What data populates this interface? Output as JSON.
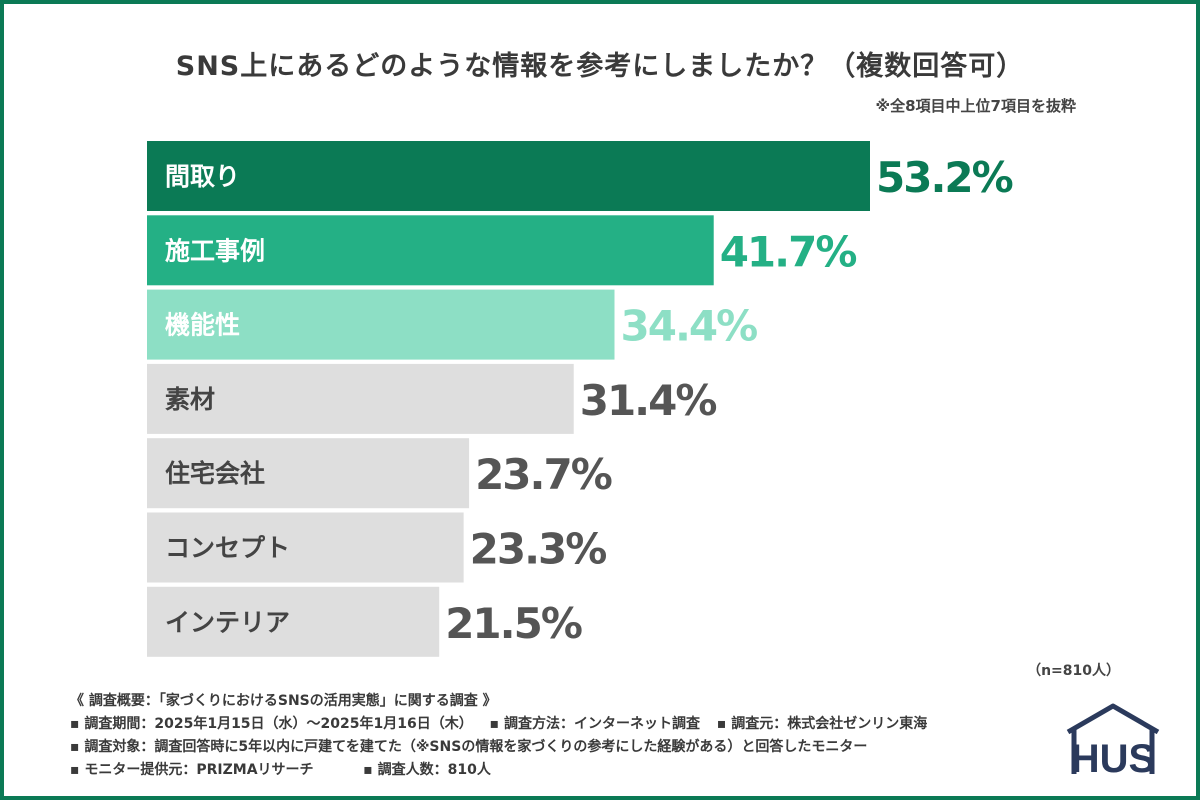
{
  "title": "SNS上にあるどのような情報を参考にしましたか？（複数回答可）",
  "subnote": "※全8項目中上位7項目を抜粋",
  "sample": "（n=810人）",
  "colors": {
    "border": "#0b7a55",
    "highlight": [
      "#0b7a55",
      "#24b085",
      "#8ddfc5"
    ],
    "gray_bar": "#dedede",
    "gray_value": "#555555",
    "gray_label": "#444444",
    "logo": "#2b3a5c"
  },
  "chart_data": {
    "type": "bar",
    "orientation": "horizontal",
    "categories": [
      "間取り",
      "施工事例",
      "機能性",
      "素材",
      "住宅会社",
      "コンセプト",
      "インテリア"
    ],
    "values": [
      53.2,
      41.7,
      34.4,
      31.4,
      23.7,
      23.3,
      21.5
    ],
    "value_labels": [
      "53.2%",
      "41.7%",
      "34.4%",
      "31.4%",
      "23.7%",
      "23.3%",
      "21.5%"
    ],
    "unit": "%"
  },
  "footnotes": {
    "survey_title": "《 調査概要：「家づくりにおけるSNSの活用実態」に関する調査 》",
    "period": "▪ 調査期間：2025年1月15日（水）～2025年1月16日（木）",
    "method": "▪ 調査方法：インターネット調査",
    "source": "▪ 調査元：株式会社ゼンリン東海",
    "target": "▪ 調査対象：調査回答時に5年以内に戸建てを建てた（※SNSの情報を家づくりの参考にした経験がある）と回答したモニター",
    "provider": "▪ モニター提供元：PRIZMAリサーチ",
    "count": "▪ 調査人数：810人"
  },
  "logo": {
    "text": "HUS",
    "icon": "house-logo-icon"
  }
}
